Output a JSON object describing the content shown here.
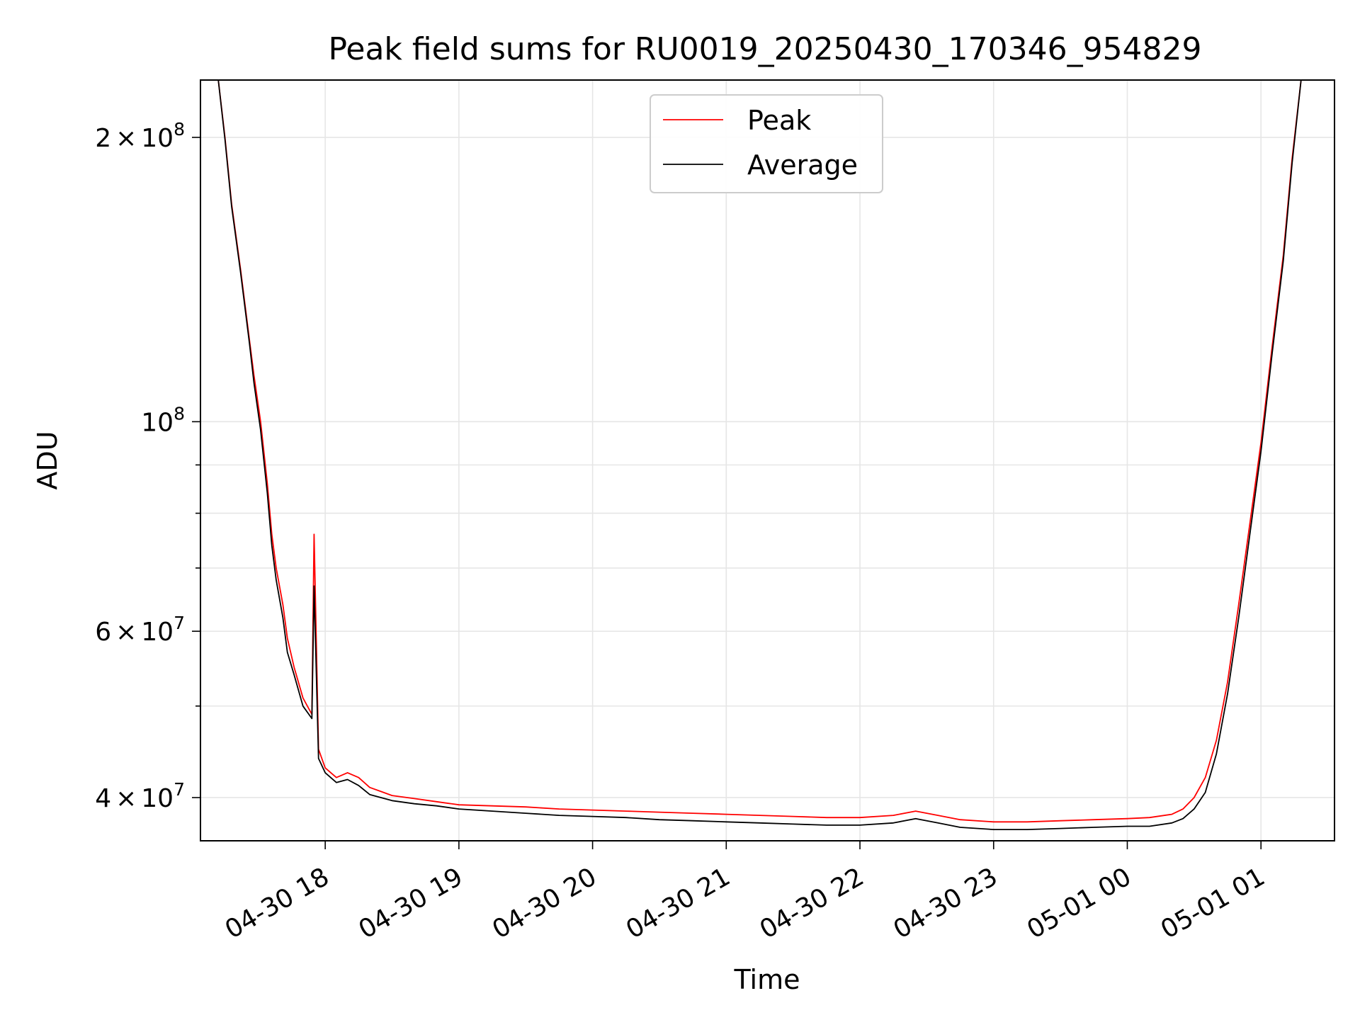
{
  "chart_data": {
    "type": "line",
    "title": "Peak field sums for RU0019_20250430_170346_954829",
    "xlabel": "Time",
    "ylabel": "ADU",
    "x_scale": "time",
    "y_scale": "log",
    "xlim": [
      "2025-04-30 17:04",
      "2025-05-01 01:33"
    ],
    "ylim": [
      36000000,
      230000000
    ],
    "grid": true,
    "legend_position": "top-center",
    "x_ticks": [
      {
        "value": "2025-04-30 18:00",
        "label": "04-30 18"
      },
      {
        "value": "2025-04-30 19:00",
        "label": "04-30 19"
      },
      {
        "value": "2025-04-30 20:00",
        "label": "04-30 20"
      },
      {
        "value": "2025-04-30 21:00",
        "label": "04-30 21"
      },
      {
        "value": "2025-04-30 22:00",
        "label": "04-30 22"
      },
      {
        "value": "2025-04-30 23:00",
        "label": "04-30 23"
      },
      {
        "value": "2025-05-01 00:00",
        "label": "05-01 00"
      },
      {
        "value": "2025-05-01 01:00",
        "label": "05-01 01"
      }
    ],
    "y_ticks": [
      {
        "value": 40000000,
        "mantissa": "4",
        "times": "×",
        "base": "10",
        "exp": "7"
      },
      {
        "value": 60000000,
        "mantissa": "6",
        "times": "×",
        "base": "10",
        "exp": "7"
      },
      {
        "value": 100000000,
        "mantissa": "",
        "times": "",
        "base": "10",
        "exp": "8"
      },
      {
        "value": 200000000,
        "mantissa": "2",
        "times": "×",
        "base": "10",
        "exp": "8"
      }
    ],
    "y_minor_grid": [
      50000000,
      70000000,
      80000000,
      90000000,
      300000000
    ],
    "series": [
      {
        "name": "Peak",
        "color": "#ff0000",
        "x": [
          "2025-04-30 17:12",
          "2025-04-30 17:15",
          "2025-04-30 17:18",
          "2025-04-30 17:22",
          "2025-04-30 17:26",
          "2025-04-30 17:28",
          "2025-04-30 17:31",
          "2025-04-30 17:34",
          "2025-04-30 17:36",
          "2025-04-30 17:38",
          "2025-04-30 17:41",
          "2025-04-30 17:43",
          "2025-04-30 17:46",
          "2025-04-30 17:50",
          "2025-04-30 17:54",
          "2025-04-30 17:55",
          "2025-04-30 17:57",
          "2025-04-30 18:00",
          "2025-04-30 18:05",
          "2025-04-30 18:10",
          "2025-04-30 18:15",
          "2025-04-30 18:20",
          "2025-04-30 18:25",
          "2025-04-30 18:30",
          "2025-04-30 18:40",
          "2025-04-30 18:50",
          "2025-04-30 19:00",
          "2025-04-30 19:15",
          "2025-04-30 19:30",
          "2025-04-30 19:45",
          "2025-04-30 20:00",
          "2025-04-30 20:15",
          "2025-04-30 20:30",
          "2025-04-30 20:45",
          "2025-04-30 21:00",
          "2025-04-30 21:15",
          "2025-04-30 21:30",
          "2025-04-30 21:45",
          "2025-04-30 22:00",
          "2025-04-30 22:15",
          "2025-04-30 22:25",
          "2025-04-30 22:35",
          "2025-04-30 22:45",
          "2025-04-30 23:00",
          "2025-04-30 23:15",
          "2025-04-30 23:30",
          "2025-04-30 23:45",
          "2025-05-01 00:00",
          "2025-05-01 00:10",
          "2025-05-01 00:20",
          "2025-05-01 00:25",
          "2025-05-01 00:30",
          "2025-05-01 00:35",
          "2025-05-01 00:40",
          "2025-05-01 00:45",
          "2025-05-01 00:50",
          "2025-05-01 00:55",
          "2025-05-01 01:00",
          "2025-05-01 01:05",
          "2025-05-01 01:10",
          "2025-05-01 01:14",
          "2025-05-01 01:18"
        ],
        "values": [
          230000000,
          200000000,
          170000000,
          145000000,
          122000000,
          112000000,
          100000000,
          86000000,
          76000000,
          70000000,
          64000000,
          59000000,
          55000000,
          51000000,
          49000000,
          76000000,
          45000000,
          43000000,
          42000000,
          42500000,
          42000000,
          41000000,
          40600000,
          40200000,
          39900000,
          39600000,
          39300000,
          39200000,
          39100000,
          38900000,
          38800000,
          38700000,
          38600000,
          38500000,
          38400000,
          38300000,
          38200000,
          38100000,
          38100000,
          38300000,
          38700000,
          38300000,
          37900000,
          37700000,
          37700000,
          37800000,
          37900000,
          38000000,
          38100000,
          38400000,
          38900000,
          40000000,
          42000000,
          46000000,
          53000000,
          64000000,
          78000000,
          95000000,
          120000000,
          150000000,
          190000000,
          230000000
        ]
      },
      {
        "name": "Average",
        "color": "#000000",
        "x": [
          "2025-04-30 17:12",
          "2025-04-30 17:15",
          "2025-04-30 17:18",
          "2025-04-30 17:22",
          "2025-04-30 17:26",
          "2025-04-30 17:28",
          "2025-04-30 17:31",
          "2025-04-30 17:34",
          "2025-04-30 17:36",
          "2025-04-30 17:38",
          "2025-04-30 17:41",
          "2025-04-30 17:43",
          "2025-04-30 17:46",
          "2025-04-30 17:50",
          "2025-04-30 17:54",
          "2025-04-30 17:55",
          "2025-04-30 17:57",
          "2025-04-30 18:00",
          "2025-04-30 18:05",
          "2025-04-30 18:10",
          "2025-04-30 18:15",
          "2025-04-30 18:20",
          "2025-04-30 18:25",
          "2025-04-30 18:30",
          "2025-04-30 18:40",
          "2025-04-30 18:50",
          "2025-04-30 19:00",
          "2025-04-30 19:15",
          "2025-04-30 19:30",
          "2025-04-30 19:45",
          "2025-04-30 20:00",
          "2025-04-30 20:15",
          "2025-04-30 20:30",
          "2025-04-30 20:45",
          "2025-04-30 21:00",
          "2025-04-30 21:15",
          "2025-04-30 21:30",
          "2025-04-30 21:45",
          "2025-04-30 22:00",
          "2025-04-30 22:15",
          "2025-04-30 22:25",
          "2025-04-30 22:35",
          "2025-04-30 22:45",
          "2025-04-30 23:00",
          "2025-04-30 23:15",
          "2025-04-30 23:30",
          "2025-04-30 23:45",
          "2025-05-01 00:00",
          "2025-05-01 00:10",
          "2025-05-01 00:20",
          "2025-05-01 00:25",
          "2025-05-01 00:30",
          "2025-05-01 00:35",
          "2025-05-01 00:40",
          "2025-05-01 00:45",
          "2025-05-01 00:50",
          "2025-05-01 00:55",
          "2025-05-01 01:00",
          "2025-05-01 01:05",
          "2025-05-01 01:10",
          "2025-05-01 01:14",
          "2025-05-01 01:18"
        ],
        "values": [
          230000000,
          199000000,
          169000000,
          144000000,
          121000000,
          110000000,
          98000000,
          84000000,
          74000000,
          68000000,
          62000000,
          57000000,
          54000000,
          50000000,
          48500000,
          67000000,
          44000000,
          42500000,
          41500000,
          41800000,
          41200000,
          40300000,
          40000000,
          39700000,
          39400000,
          39200000,
          38900000,
          38700000,
          38500000,
          38300000,
          38200000,
          38100000,
          37900000,
          37800000,
          37700000,
          37600000,
          37500000,
          37400000,
          37400000,
          37600000,
          38000000,
          37600000,
          37200000,
          37000000,
          37000000,
          37100000,
          37200000,
          37300000,
          37300000,
          37600000,
          38000000,
          38900000,
          40500000,
          44500000,
          51500000,
          62000000,
          76000000,
          93000000,
          118000000,
          148000000,
          188000000,
          230000000
        ]
      }
    ]
  }
}
